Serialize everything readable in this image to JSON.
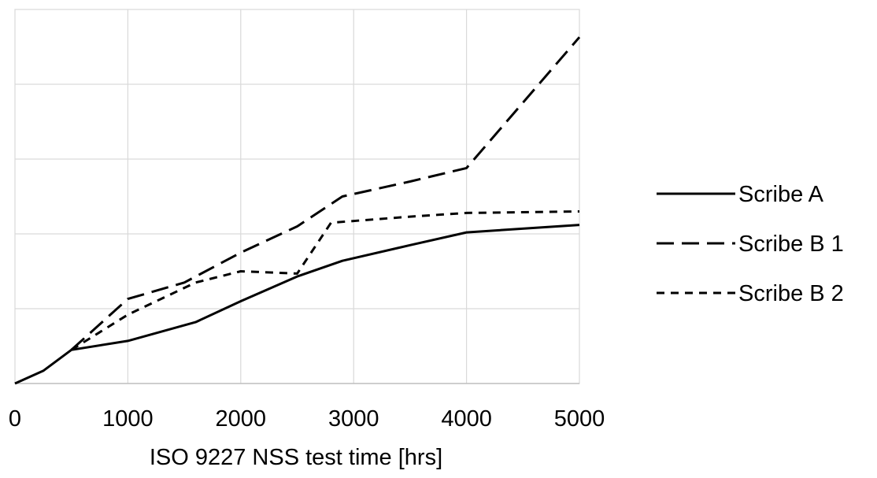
{
  "chart_data": {
    "type": "line",
    "title": "",
    "xlabel": "ISO 9227 NSS test time [hrs]",
    "ylabel": "",
    "xlim": [
      0,
      5000
    ],
    "ylim": [
      0,
      5
    ],
    "x_ticks": [
      "0",
      "1000",
      "2000",
      "3000",
      "4000",
      "5000"
    ],
    "grid": true,
    "legend_position": "right",
    "series": [
      {
        "name": "Scribe A",
        "style": "solid",
        "color": "#000000",
        "points": [
          [
            0,
            0
          ],
          [
            250,
            0.17
          ],
          [
            500,
            0.45
          ],
          [
            1000,
            0.57
          ],
          [
            1600,
            0.82
          ],
          [
            2000,
            1.1
          ],
          [
            2500,
            1.43
          ],
          [
            2900,
            1.64
          ],
          [
            3500,
            1.85
          ],
          [
            4000,
            2.02
          ],
          [
            5000,
            2.12
          ]
        ]
      },
      {
        "name": "Scribe B 1",
        "style": "long-dash",
        "color": "#000000",
        "points": [
          [
            500,
            0.45
          ],
          [
            1000,
            1.13
          ],
          [
            1500,
            1.35
          ],
          [
            2000,
            1.75
          ],
          [
            2500,
            2.1
          ],
          [
            2900,
            2.5
          ],
          [
            3500,
            2.7
          ],
          [
            4000,
            2.88
          ],
          [
            5000,
            4.63
          ]
        ]
      },
      {
        "name": "Scribe B 2",
        "style": "short-dash",
        "color": "#000000",
        "points": [
          [
            500,
            0.45
          ],
          [
            1000,
            0.92
          ],
          [
            1600,
            1.35
          ],
          [
            2000,
            1.5
          ],
          [
            2500,
            1.47
          ],
          [
            2800,
            2.15
          ],
          [
            3500,
            2.23
          ],
          [
            4000,
            2.28
          ],
          [
            5000,
            2.3
          ]
        ]
      }
    ]
  }
}
